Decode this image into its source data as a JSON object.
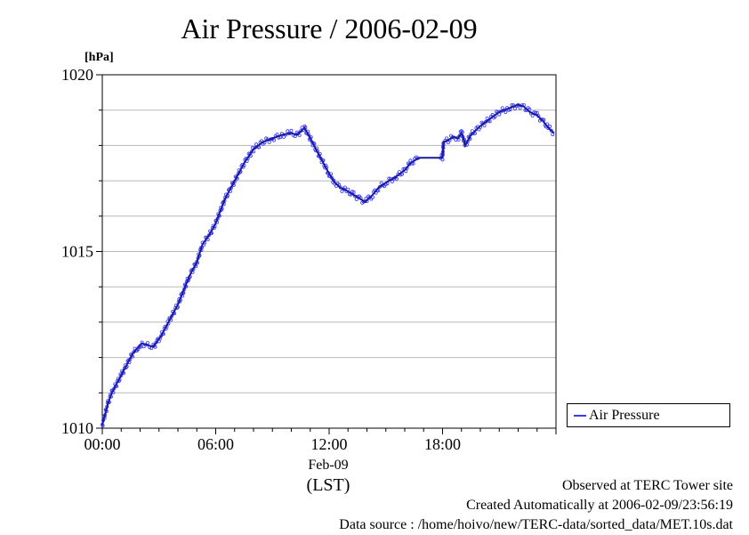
{
  "chart_data": {
    "type": "line",
    "title": "Air Pressure / 2006-02-09",
    "ylabel": "[hPa]",
    "ylim": [
      1010,
      1020
    ],
    "y_ticks": [
      "1010",
      "1015",
      "1020"
    ],
    "xlim": [
      "00:00",
      "24:00"
    ],
    "x_ticks": [
      "00:00",
      "06:00",
      "12:00",
      "18:00"
    ],
    "x_date_label": "Feb-09",
    "x_axis_label": "(LST)",
    "grid": true,
    "legend_position": "right, outside plot",
    "series": [
      {
        "name": "Air Pressure",
        "color": "#3a3aff",
        "x_hours": [
          0.0,
          0.1,
          0.3,
          0.5,
          0.8,
          1.0,
          1.3,
          1.6,
          1.9,
          2.0,
          2.1,
          2.4,
          2.7,
          2.9,
          3.1,
          3.5,
          4.0,
          4.3,
          4.6,
          5.0,
          5.3,
          5.7,
          6.0,
          6.5,
          7.0,
          7.5,
          8.0,
          8.5,
          9.0,
          9.5,
          10.0,
          10.3,
          10.7,
          11.0,
          11.3,
          11.6,
          12.0,
          12.3,
          12.6,
          13.0,
          13.3,
          13.6,
          13.9,
          14.0,
          14.3,
          14.6,
          15.0,
          15.5,
          16.0,
          16.3,
          16.6,
          16.8,
          17.9,
          18.0,
          18.05,
          18.3,
          18.6,
          18.8,
          19.0,
          19.05,
          19.2,
          19.5,
          20.0,
          20.5,
          21.0,
          21.5,
          22.0,
          22.3,
          22.6,
          23.0,
          23.3,
          23.6,
          23.9
        ],
        "y_hpa": [
          1010.1,
          1010.3,
          1010.7,
          1011.0,
          1011.3,
          1011.5,
          1011.8,
          1012.1,
          1012.3,
          1012.35,
          1012.4,
          1012.35,
          1012.3,
          1012.45,
          1012.6,
          1013.0,
          1013.5,
          1013.9,
          1014.3,
          1014.7,
          1015.2,
          1015.5,
          1015.8,
          1016.5,
          1017.0,
          1017.5,
          1017.9,
          1018.1,
          1018.2,
          1018.3,
          1018.35,
          1018.3,
          1018.5,
          1018.2,
          1017.9,
          1017.6,
          1017.2,
          1016.95,
          1016.8,
          1016.7,
          1016.6,
          1016.5,
          1016.4,
          1016.45,
          1016.6,
          1016.8,
          1016.95,
          1017.1,
          1017.3,
          1017.5,
          1017.6,
          1017.65,
          1017.65,
          1017.65,
          1018.1,
          1018.15,
          1018.25,
          1018.2,
          1018.35,
          1018.3,
          1018.0,
          1018.3,
          1018.55,
          1018.75,
          1018.95,
          1019.05,
          1019.15,
          1019.1,
          1018.95,
          1018.85,
          1018.7,
          1018.5,
          1018.35
        ]
      }
    ]
  },
  "footer": {
    "observed": "Observed at TERC Tower site",
    "created": "Created Automatically at 2006-02-09/23:56:19",
    "source": "Data source : /home/hoivo/new/TERC-data/sorted_data/MET.10s.dat"
  }
}
